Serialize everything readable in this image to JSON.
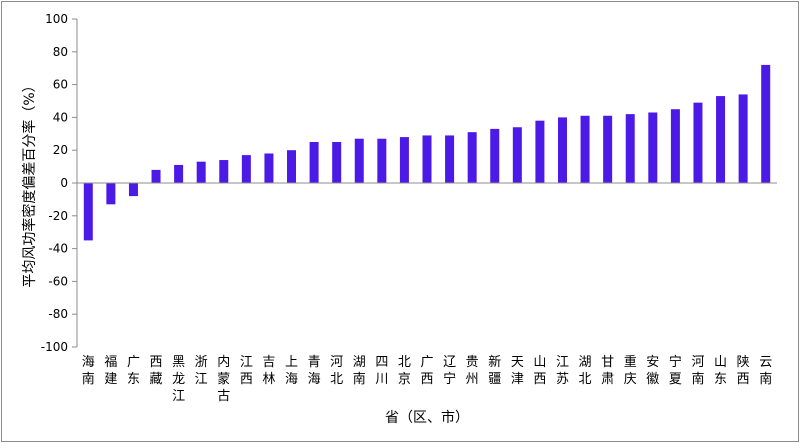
{
  "chart_data": {
    "type": "bar",
    "categories": [
      "海南",
      "福建",
      "广东",
      "西藏",
      "黑龙江",
      "浙江",
      "内蒙古",
      "江西",
      "吉林",
      "上海",
      "青海",
      "河北",
      "湖南",
      "四川",
      "北京",
      "广西",
      "辽宁",
      "贵州",
      "新疆",
      "天津",
      "山西",
      "江苏",
      "湖北",
      "甘肃",
      "重庆",
      "安徽",
      "宁夏",
      "河南",
      "山东",
      "陕西",
      "云南"
    ],
    "values": [
      -35,
      -13,
      -8,
      8,
      11,
      13,
      14,
      17,
      18,
      20,
      25,
      25,
      27,
      27,
      28,
      29,
      29,
      31,
      33,
      34,
      38,
      40,
      41,
      41,
      42,
      43,
      45,
      49,
      53,
      54,
      72
    ],
    "xlabel": "省（区、市）",
    "ylabel": "平均风功率密度偏差百分率（%）",
    "ylim": [
      -100,
      100
    ],
    "yticks": [
      -100,
      -80,
      -60,
      -40,
      -20,
      0,
      20,
      40,
      60,
      80,
      100
    ],
    "bar_color": "#4b1ae6",
    "grid": false,
    "legend": "none"
  }
}
